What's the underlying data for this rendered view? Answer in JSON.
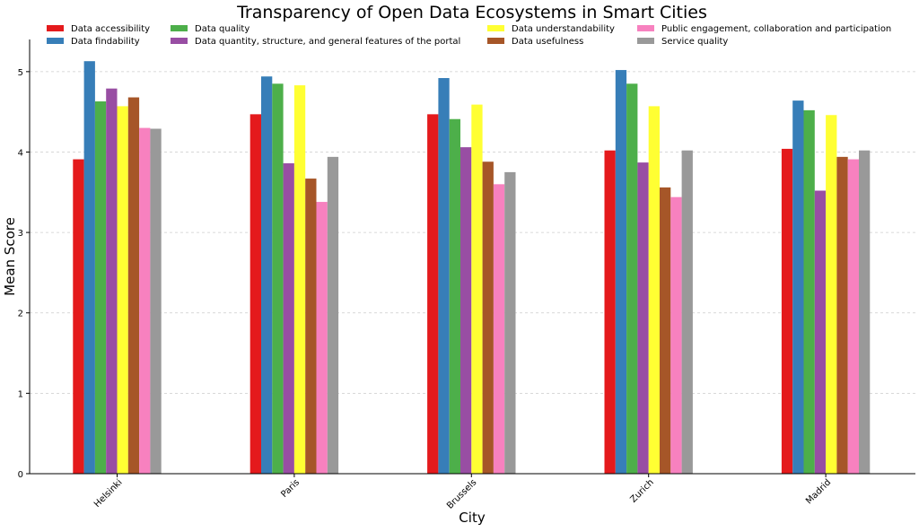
{
  "chart_data": {
    "type": "bar",
    "title": "Transparency of Open Data Ecosystems in Smart Cities",
    "xlabel": "City",
    "ylabel": "Mean Score",
    "ylim": [
      0,
      5.4
    ],
    "yticks": [
      0,
      1,
      2,
      3,
      4,
      5
    ],
    "grid": "horizontal dashed",
    "legend_position": "top",
    "categories": [
      "Helsinki",
      "Paris",
      "Brussels",
      "Zurich",
      "Madrid"
    ],
    "series": [
      {
        "name": "Data accessibility",
        "color": "#e41a1c",
        "values": [
          3.91,
          4.47,
          4.47,
          4.02,
          4.04
        ]
      },
      {
        "name": "Data findability",
        "color": "#377eb8",
        "values": [
          5.13,
          4.94,
          4.92,
          5.02,
          4.64
        ]
      },
      {
        "name": "Data quality",
        "color": "#4daf4a",
        "values": [
          4.63,
          4.85,
          4.41,
          4.85,
          4.52
        ]
      },
      {
        "name": "Data quantity, structure, and general features of the portal",
        "color": "#984ea3",
        "values": [
          4.79,
          3.86,
          4.06,
          3.87,
          3.52
        ]
      },
      {
        "name": "Data understandability",
        "color": "#ffff33",
        "values": [
          4.57,
          4.83,
          4.59,
          4.57,
          4.46
        ]
      },
      {
        "name": "Data usefulness",
        "color": "#a65628",
        "values": [
          4.68,
          3.67,
          3.88,
          3.56,
          3.94
        ]
      },
      {
        "name": "Public engagement, collaboration and participation",
        "color": "#f781bf",
        "values": [
          4.3,
          3.38,
          3.6,
          3.44,
          3.91
        ]
      },
      {
        "name": "Service quality",
        "color": "#999999",
        "values": [
          4.29,
          3.94,
          3.75,
          4.02,
          4.02
        ]
      }
    ]
  }
}
